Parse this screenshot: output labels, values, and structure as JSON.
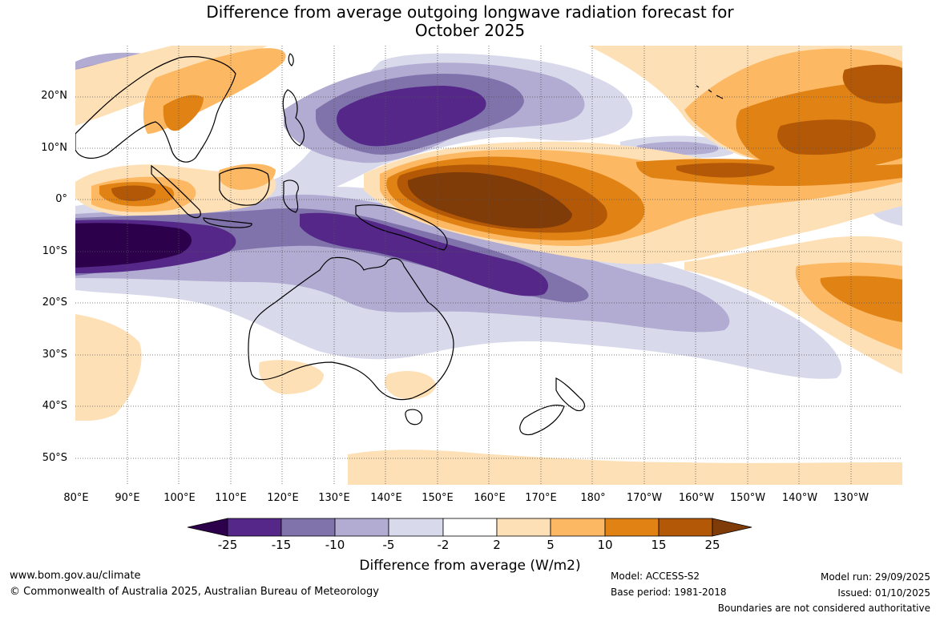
{
  "title": {
    "line1": "Difference from average outgoing longwave radiation forecast for",
    "line2": "October 2025"
  },
  "map": {
    "region": "Australia, Maritime Continent and western Pacific",
    "lat_labels": [
      "20°N",
      "10°N",
      "0°",
      "10°S",
      "20°S",
      "30°S",
      "40°S",
      "50°S"
    ],
    "lon_labels": [
      "80°E",
      "90°E",
      "100°E",
      "110°E",
      "120°E",
      "130°E",
      "140°E",
      "150°E",
      "160°E",
      "170°E",
      "180°",
      "170°W",
      "160°W",
      "150°W",
      "140°W",
      "130°W"
    ]
  },
  "legend": {
    "ticks": [
      "-25",
      "-15",
      "-10",
      "-5",
      "-2",
      "2",
      "5",
      "10",
      "15",
      "25"
    ],
    "bins": [
      {
        "range": "< -25",
        "color": "#2d004b"
      },
      {
        "range": "-25 to -15",
        "color": "#542788"
      },
      {
        "range": "-15 to -10",
        "color": "#8073ac"
      },
      {
        "range": "-10 to -5",
        "color": "#b2abd2"
      },
      {
        "range": "-5 to -2",
        "color": "#d8daeb"
      },
      {
        "range": "-2 to 2",
        "color": "#ffffff"
      },
      {
        "range": "2 to 5",
        "color": "#fee0b6"
      },
      {
        "range": "5 to 10",
        "color": "#fdb863"
      },
      {
        "range": "10 to 15",
        "color": "#e08214"
      },
      {
        "range": "15 to 25",
        "color": "#b35806"
      },
      {
        "range": "> 25",
        "color": "#7f3b08"
      }
    ],
    "label": "Difference from average (W/m2)"
  },
  "footer": {
    "website": "www.bom.gov.au/climate",
    "copyright": "© Commonwealth of Australia 2025, Australian Bureau of Meteorology",
    "model": "Model: ACCESS-S2",
    "base_period": "Base period: 1981-2018",
    "model_run": "Model run: 29/09/2025",
    "issued": "Issued: 01/10/2025",
    "disclaimer": "Boundaries are not considered authoritative"
  }
}
